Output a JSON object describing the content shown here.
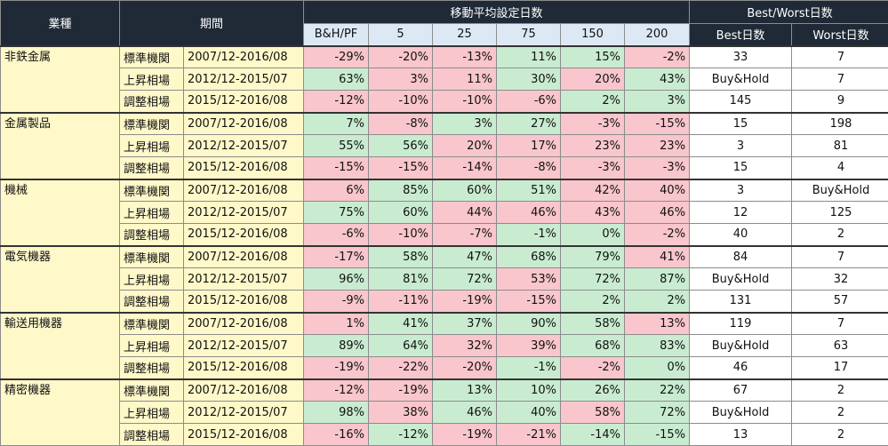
{
  "headers": {
    "sector": "業種",
    "period": "期間",
    "ma_group": "移動平均設定日数",
    "bw_group": "Best/Worst日数",
    "cols": [
      "B&H/PF",
      "5",
      "25",
      "75",
      "150",
      "200"
    ],
    "best": "Best日数",
    "worst": "Worst日数"
  },
  "colors": {
    "header_bg": "#1f2a36",
    "subheader_bg": "#dce9f5",
    "label_bg": "#fff8c9",
    "positive_bg": "#c9ecd1",
    "negative_bg": "#f8c6cc"
  },
  "sectors": [
    {
      "name": "非鉄金属",
      "rows": [
        {
          "type": "標準機関",
          "range": "2007/12-2016/08",
          "values": [
            "-29%",
            "-20%",
            "-13%",
            "11%",
            "15%",
            "-2%"
          ],
          "best": "33",
          "worst": "7"
        },
        {
          "type": "上昇相場",
          "range": "2012/12-2015/07",
          "values": [
            "63%",
            "3%",
            "11%",
            "30%",
            "20%",
            "43%"
          ],
          "best": "Buy&Hold",
          "worst": "7"
        },
        {
          "type": "調整相場",
          "range": "2015/12-2016/08",
          "values": [
            "-12%",
            "-10%",
            "-10%",
            "-6%",
            "2%",
            "3%"
          ],
          "best": "145",
          "worst": "9"
        }
      ]
    },
    {
      "name": "金属製品",
      "rows": [
        {
          "type": "標準機関",
          "range": "2007/12-2016/08",
          "values": [
            "7%",
            "-8%",
            "3%",
            "27%",
            "-3%",
            "-15%"
          ],
          "best": "15",
          "worst": "198"
        },
        {
          "type": "上昇相場",
          "range": "2012/12-2015/07",
          "values": [
            "55%",
            "56%",
            "20%",
            "17%",
            "23%",
            "23%"
          ],
          "best": "3",
          "worst": "81"
        },
        {
          "type": "調整相場",
          "range": "2015/12-2016/08",
          "values": [
            "-15%",
            "-15%",
            "-14%",
            "-8%",
            "-3%",
            "-3%"
          ],
          "best": "15",
          "worst": "4"
        }
      ]
    },
    {
      "name": "機械",
      "rows": [
        {
          "type": "標準機関",
          "range": "2007/12-2016/08",
          "values": [
            "6%",
            "85%",
            "60%",
            "51%",
            "42%",
            "40%"
          ],
          "best": "3",
          "worst": "Buy&Hold"
        },
        {
          "type": "上昇相場",
          "range": "2012/12-2015/07",
          "values": [
            "75%",
            "60%",
            "44%",
            "46%",
            "43%",
            "46%"
          ],
          "best": "12",
          "worst": "125"
        },
        {
          "type": "調整相場",
          "range": "2015/12-2016/08",
          "values": [
            "-6%",
            "-10%",
            "-7%",
            "-1%",
            "0%",
            "-2%"
          ],
          "best": "40",
          "worst": "2"
        }
      ]
    },
    {
      "name": "電気機器",
      "rows": [
        {
          "type": "標準機関",
          "range": "2007/12-2016/08",
          "values": [
            "-17%",
            "58%",
            "47%",
            "68%",
            "79%",
            "41%"
          ],
          "best": "84",
          "worst": "7"
        },
        {
          "type": "上昇相場",
          "range": "2012/12-2015/07",
          "values": [
            "96%",
            "81%",
            "72%",
            "53%",
            "72%",
            "87%"
          ],
          "best": "Buy&Hold",
          "worst": "32"
        },
        {
          "type": "調整相場",
          "range": "2015/12-2016/08",
          "values": [
            "-9%",
            "-11%",
            "-19%",
            "-15%",
            "2%",
            "2%"
          ],
          "best": "131",
          "worst": "57"
        }
      ]
    },
    {
      "name": "輸送用機器",
      "rows": [
        {
          "type": "標準機関",
          "range": "2007/12-2016/08",
          "values": [
            "1%",
            "41%",
            "37%",
            "90%",
            "58%",
            "13%"
          ],
          "best": "119",
          "worst": "7"
        },
        {
          "type": "上昇相場",
          "range": "2012/12-2015/07",
          "values": [
            "89%",
            "64%",
            "32%",
            "39%",
            "68%",
            "83%"
          ],
          "best": "Buy&Hold",
          "worst": "63"
        },
        {
          "type": "調整相場",
          "range": "2015/12-2016/08",
          "values": [
            "-19%",
            "-22%",
            "-20%",
            "-1%",
            "-2%",
            "0%"
          ],
          "best": "46",
          "worst": "17"
        }
      ]
    },
    {
      "name": "精密機器",
      "rows": [
        {
          "type": "標準機関",
          "range": "2007/12-2016/08",
          "values": [
            "-12%",
            "-19%",
            "13%",
            "10%",
            "26%",
            "22%"
          ],
          "best": "67",
          "worst": "2"
        },
        {
          "type": "上昇相場",
          "range": "2012/12-2015/07",
          "values": [
            "98%",
            "38%",
            "46%",
            "40%",
            "58%",
            "72%"
          ],
          "best": "Buy&Hold",
          "worst": "2"
        },
        {
          "type": "調整相場",
          "range": "2015/12-2016/08",
          "values": [
            "-16%",
            "-12%",
            "-19%",
            "-21%",
            "-14%",
            "-15%"
          ],
          "best": "13",
          "worst": "2"
        }
      ]
    }
  ],
  "cell_signs": [
    [
      "neg",
      "neg",
      "neg",
      "pos",
      "pos",
      "neg"
    ],
    [
      "pos",
      "neg",
      "neg",
      "pos",
      "neg",
      "pos"
    ],
    [
      "neg",
      "neg",
      "neg",
      "neg",
      "pos",
      "pos"
    ],
    [
      "pos",
      "neg",
      "pos",
      "pos",
      "neg",
      "neg"
    ],
    [
      "pos",
      "pos",
      "neg",
      "neg",
      "neg",
      "neg"
    ],
    [
      "neg",
      "neg",
      "neg",
      "neg",
      "neg",
      "neg"
    ],
    [
      "neg",
      "pos",
      "pos",
      "pos",
      "neg",
      "neg"
    ],
    [
      "pos",
      "pos",
      "neg",
      "neg",
      "neg",
      "neg"
    ],
    [
      "neg",
      "neg",
      "neg",
      "pos",
      "pos",
      "neg"
    ],
    [
      "neg",
      "pos",
      "pos",
      "pos",
      "pos",
      "neg"
    ],
    [
      "pos",
      "pos",
      "pos",
      "neg",
      "pos",
      "pos"
    ],
    [
      "neg",
      "neg",
      "neg",
      "neg",
      "pos",
      "pos"
    ],
    [
      "neg",
      "pos",
      "pos",
      "pos",
      "pos",
      "neg"
    ],
    [
      "pos",
      "pos",
      "neg",
      "neg",
      "pos",
      "pos"
    ],
    [
      "neg",
      "neg",
      "neg",
      "pos",
      "neg",
      "pos"
    ],
    [
      "neg",
      "neg",
      "pos",
      "pos",
      "pos",
      "pos"
    ],
    [
      "pos",
      "neg",
      "pos",
      "pos",
      "neg",
      "pos"
    ],
    [
      "neg",
      "pos",
      "neg",
      "neg",
      "pos",
      "pos"
    ]
  ]
}
